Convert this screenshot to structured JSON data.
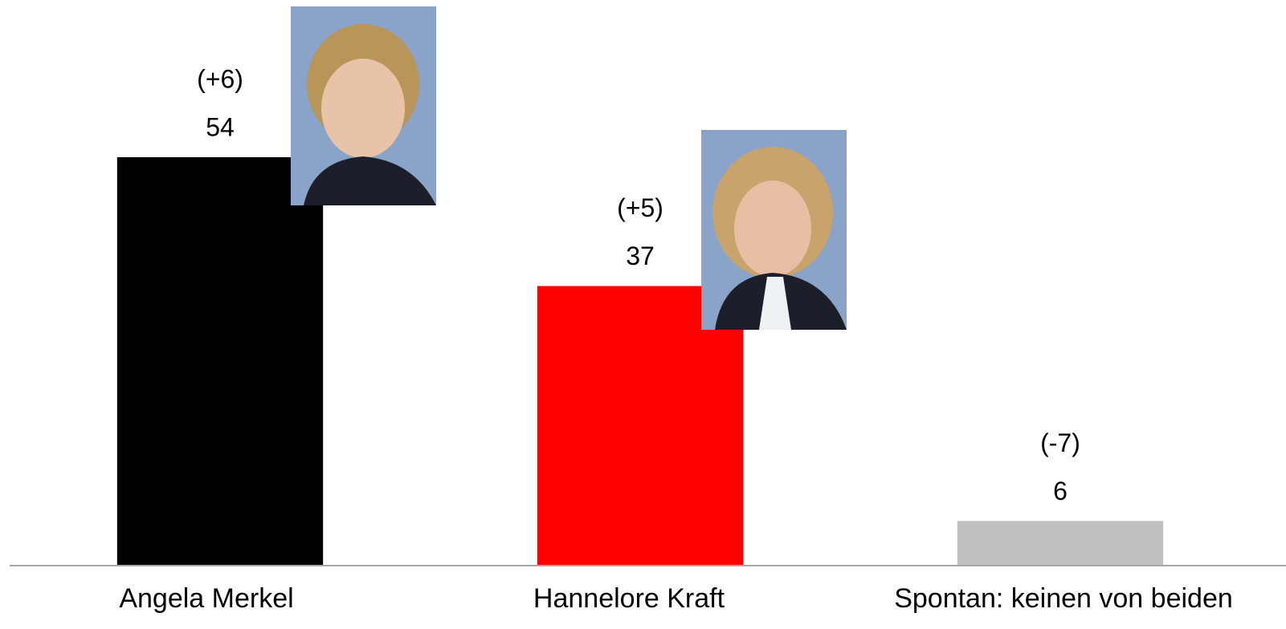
{
  "chart_data": {
    "type": "bar",
    "categories": [
      "Angela Merkel",
      "Hannelore Kraft",
      "Spontan: keinen von beiden"
    ],
    "values": [
      54,
      37,
      6
    ],
    "changes": [
      "(+6)",
      "(+5)",
      "(-7)"
    ],
    "colors": [
      "#000000",
      "#ff0000",
      "#bfbfbf"
    ],
    "ylim": [
      0,
      74
    ]
  }
}
